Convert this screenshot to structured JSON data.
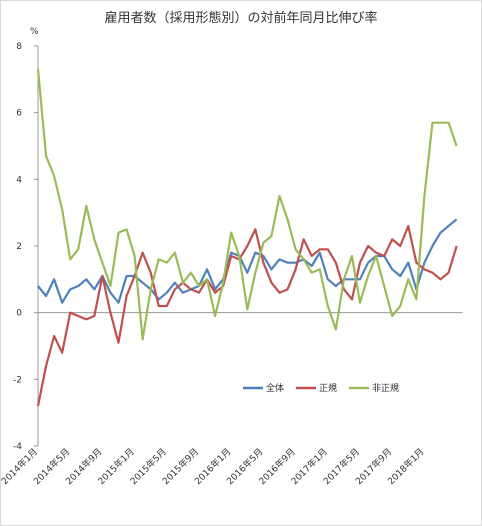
{
  "chart_data": {
    "type": "line",
    "title": "雇用者数（採用形態別）の対前年同月比伸び率",
    "y_unit": "%",
    "categories": [
      "2014年1月",
      null,
      null,
      null,
      "2014年5月",
      null,
      null,
      null,
      "2014年9月",
      null,
      null,
      null,
      "2015年1月",
      null,
      null,
      null,
      "2015年5月",
      null,
      null,
      null,
      "2015年9月",
      null,
      null,
      null,
      "2016年1月",
      null,
      null,
      null,
      "2016年5月",
      null,
      null,
      null,
      "2016年9月",
      null,
      null,
      null,
      "2017年1月",
      null,
      null,
      null,
      "2017年5月",
      null,
      null,
      null,
      "2017年9月",
      null,
      null,
      null,
      "2018年1月",
      null,
      null,
      null,
      null
    ],
    "series": [
      {
        "name": "全体",
        "color": "#4f81bd",
        "values": [
          0.8,
          0.5,
          1.0,
          0.3,
          0.7,
          0.8,
          1.0,
          0.7,
          1.1,
          0.6,
          0.3,
          1.1,
          1.1,
          0.9,
          0.7,
          0.4,
          0.6,
          0.9,
          0.6,
          0.7,
          0.8,
          1.3,
          0.7,
          1.0,
          1.8,
          1.7,
          1.2,
          1.8,
          1.7,
          1.3,
          1.6,
          1.5,
          1.5,
          1.6,
          1.4,
          1.8,
          1.0,
          0.8,
          1.0,
          1.0,
          1.0,
          1.5,
          1.7,
          1.7,
          1.3,
          1.1,
          1.5,
          0.7,
          1.5,
          2.0,
          2.4,
          2.6,
          2.8
        ]
      },
      {
        "name": "正規",
        "color": "#c0504d",
        "values": [
          -2.8,
          -1.6,
          -0.7,
          -1.2,
          0.0,
          -0.1,
          -0.2,
          -0.1,
          1.1,
          0.0,
          -0.9,
          0.5,
          1.1,
          1.8,
          1.2,
          0.2,
          0.2,
          0.7,
          0.9,
          0.7,
          0.6,
          1.0,
          0.6,
          0.8,
          1.7,
          1.6,
          2.0,
          2.5,
          1.5,
          0.9,
          0.6,
          0.7,
          1.3,
          2.2,
          1.7,
          1.9,
          1.9,
          1.5,
          0.7,
          0.4,
          1.5,
          2.0,
          1.8,
          1.7,
          2.2,
          2.0,
          2.6,
          1.5,
          1.3,
          1.2,
          1.0,
          1.2,
          2.0
        ]
      },
      {
        "name": "非正規",
        "color": "#9bbb59",
        "values": [
          7.3,
          4.7,
          4.1,
          3.1,
          1.6,
          1.9,
          3.2,
          2.2,
          1.5,
          0.8,
          2.4,
          2.5,
          1.7,
          -0.8,
          0.7,
          1.6,
          1.5,
          1.8,
          0.9,
          1.2,
          0.8,
          1.0,
          -0.1,
          0.9,
          2.4,
          1.7,
          0.1,
          1.2,
          2.1,
          2.3,
          3.5,
          2.8,
          1.9,
          1.6,
          1.2,
          1.3,
          0.2,
          -0.5,
          1.0,
          1.7,
          0.3,
          1.1,
          1.7,
          0.8,
          -0.1,
          0.2,
          1.0,
          0.4,
          3.5,
          5.7,
          5.7,
          5.7,
          5.0
        ]
      }
    ],
    "ylim": [
      -4,
      8
    ],
    "yticks": [
      -4,
      -2,
      0,
      2,
      4,
      6,
      8
    ],
    "legend": "center"
  }
}
